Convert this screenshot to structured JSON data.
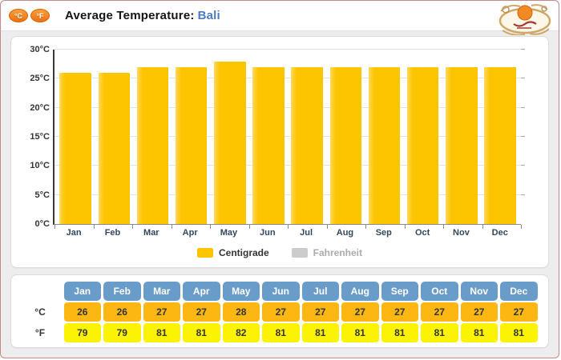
{
  "header": {
    "celsius_badge": "°C",
    "fahrenheit_badge": "°F",
    "title_prefix": "Average Temperature:",
    "title_location": "Bali"
  },
  "chart_data": {
    "type": "bar",
    "title": "Average Temperature: Bali",
    "categories": [
      "Jan",
      "Feb",
      "Mar",
      "Apr",
      "May",
      "Jun",
      "Jul",
      "Aug",
      "Sep",
      "Oct",
      "Nov",
      "Dec"
    ],
    "series": [
      {
        "name": "Centigrade",
        "values": [
          26,
          26,
          27,
          27,
          28,
          27,
          27,
          27,
          27,
          27,
          27,
          27
        ],
        "color": "#fdc500",
        "visible": true
      },
      {
        "name": "Fahrenheit",
        "values": [
          79,
          79,
          81,
          81,
          82,
          81,
          81,
          81,
          81,
          81,
          81,
          81
        ],
        "color": "#cccccc",
        "visible": false
      }
    ],
    "ylim": [
      0,
      30
    ],
    "ytick_step": 5,
    "ytick_suffix": "°C",
    "grid": true,
    "legend_position": "bottom"
  },
  "table": {
    "months": [
      "Jan",
      "Feb",
      "Mar",
      "Apr",
      "May",
      "Jun",
      "Jul",
      "Aug",
      "Sep",
      "Oct",
      "Nov",
      "Dec"
    ],
    "rows": [
      {
        "label": "°C",
        "values": [
          26,
          26,
          27,
          27,
          28,
          27,
          27,
          27,
          27,
          27,
          27,
          27
        ]
      },
      {
        "label": "°F",
        "values": [
          79,
          79,
          81,
          81,
          82,
          81,
          81,
          81,
          81,
          81,
          81,
          81
        ]
      }
    ]
  },
  "colors": {
    "bar": "#fdc500",
    "legend_disabled": "#cccccc",
    "table_header": "#6a9cc9",
    "celsius_row": "#fdb713",
    "fahrenheit_row": "#fbf303",
    "accent_orange": "#ee7011",
    "location_blue": "#4a7cc0"
  }
}
